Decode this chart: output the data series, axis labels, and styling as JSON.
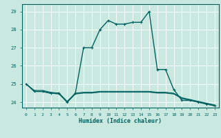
{
  "title": "",
  "xlabel": "Humidex (Indice chaleur)",
  "xlim": [
    -0.5,
    23.5
  ],
  "ylim": [
    23.7,
    29.4
  ],
  "yticks": [
    24,
    25,
    26,
    27,
    28,
    29
  ],
  "xticks": [
    0,
    1,
    2,
    3,
    4,
    5,
    6,
    7,
    8,
    9,
    10,
    11,
    12,
    13,
    14,
    15,
    16,
    17,
    18,
    19,
    20,
    21,
    22,
    23
  ],
  "bg_color": "#c8e8e0",
  "grid_color": "#ffffff",
  "line_color": "#006060",
  "series": [
    {
      "x": [
        0,
        1,
        2,
        3,
        4,
        5,
        6,
        7,
        8,
        9,
        10,
        11,
        12,
        13,
        14,
        15,
        16,
        17,
        18,
        19,
        20,
        21,
        22,
        23
      ],
      "y": [
        25.0,
        24.6,
        24.6,
        24.5,
        24.5,
        24.0,
        24.5,
        27.0,
        27.0,
        28.0,
        28.5,
        28.3,
        28.3,
        28.4,
        28.4,
        29.0,
        25.8,
        25.8,
        24.7,
        24.1,
        24.1,
        24.0,
        23.9,
        23.8
      ],
      "marker": "+",
      "linestyle": "-",
      "linewidth": 1.0,
      "markersize": 3
    },
    {
      "x": [
        0,
        1,
        2,
        3,
        4,
        5,
        6,
        7,
        8,
        9,
        10,
        11,
        12,
        13,
        14,
        15,
        16,
        17,
        18,
        19,
        20,
        21,
        22,
        23
      ],
      "y": [
        25.0,
        24.65,
        24.65,
        24.55,
        24.5,
        24.05,
        24.5,
        24.55,
        24.55,
        24.6,
        24.6,
        24.6,
        24.6,
        24.6,
        24.6,
        24.6,
        24.55,
        24.55,
        24.5,
        24.25,
        24.15,
        24.05,
        23.95,
        23.85
      ],
      "marker": null,
      "linestyle": "-",
      "linewidth": 0.7,
      "markersize": 0
    },
    {
      "x": [
        0,
        1,
        2,
        3,
        4,
        5,
        6,
        7,
        8,
        9,
        10,
        11,
        12,
        13,
        14,
        15,
        16,
        17,
        18,
        19,
        20,
        21,
        22,
        23
      ],
      "y": [
        25.0,
        24.6,
        24.6,
        24.5,
        24.45,
        24.0,
        24.45,
        24.5,
        24.5,
        24.55,
        24.55,
        24.55,
        24.55,
        24.55,
        24.55,
        24.55,
        24.5,
        24.5,
        24.45,
        24.2,
        24.1,
        24.0,
        23.9,
        23.8
      ],
      "marker": null,
      "linestyle": "-",
      "linewidth": 0.7,
      "markersize": 0
    },
    {
      "x": [
        0,
        1,
        2,
        3,
        4,
        5,
        6,
        7,
        8,
        9,
        10,
        11,
        12,
        13,
        14,
        15,
        16,
        17,
        18,
        19,
        20,
        21,
        22,
        23
      ],
      "y": [
        25.0,
        24.58,
        24.58,
        24.48,
        24.47,
        24.0,
        24.47,
        24.52,
        24.52,
        24.57,
        24.57,
        24.57,
        24.57,
        24.57,
        24.57,
        24.57,
        24.52,
        24.52,
        24.47,
        24.22,
        24.12,
        24.02,
        23.92,
        23.82
      ],
      "marker": null,
      "linestyle": "-",
      "linewidth": 0.7,
      "markersize": 0
    }
  ]
}
